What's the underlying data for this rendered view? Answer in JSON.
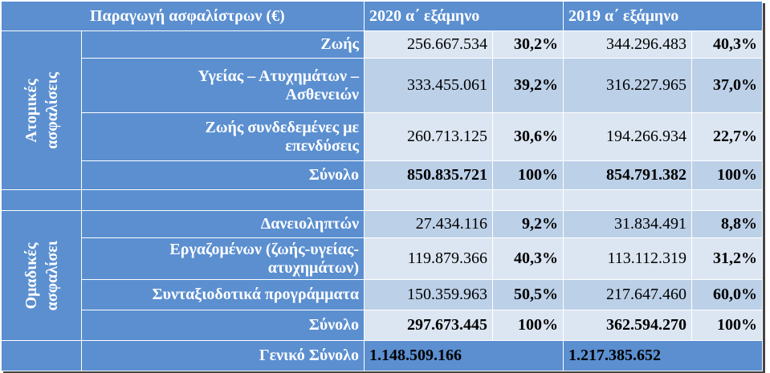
{
  "header": {
    "title": "Παραγωγή ασφαλίστρων  (€)",
    "col_2020": "2020 α΄ εξάμηνο",
    "col_2019": "2019 α΄ εξάμηνο"
  },
  "groups": [
    {
      "label": [
        "Ατομικές",
        "ασφαλίσεις"
      ],
      "rows": [
        {
          "label": [
            "Ζωής"
          ],
          "v2020": "256.667.534",
          "p2020": "30,2%",
          "v2019": "344.296.483",
          "p2019": "40,3%"
        },
        {
          "label": [
            "Υγείας – Ατυχημάτων –",
            "Ασθενειών"
          ],
          "v2020": "333.455.061",
          "p2020": "39,2%",
          "v2019": "316.227.965",
          "p2019": "37,0%"
        },
        {
          "label": [
            "Ζωής συνδεδεμένες με",
            "επενδύσεις"
          ],
          "v2020": "260.713.125",
          "p2020": "30,6%",
          "v2019": "194.266.934",
          "p2019": "22,7%"
        },
        {
          "label": [
            "Σύνολο"
          ],
          "v2020": "850.835.721",
          "p2020": "100%",
          "v2019": "854.791.382",
          "p2019": "100%",
          "bold": true
        }
      ]
    },
    {
      "label": [
        "Ομαδικές",
        "ασφαλίσει"
      ],
      "rows": [
        {
          "label": [
            "Δανειοληπτών"
          ],
          "v2020": "27.434.116",
          "p2020": "9,2%",
          "v2019": "31.834.491",
          "p2019": "8,8%"
        },
        {
          "label": [
            "Εργαζομένων (ζωής-υγείας-",
            "ατυχημάτων)"
          ],
          "v2020": "119.879.366",
          "p2020": "40,3%",
          "v2019": "113.112.319",
          "p2019": "31,2%"
        },
        {
          "label": [
            "Συνταξιοδοτικά προγράμματα"
          ],
          "v2020": "150.359.963",
          "p2020": "50,5%",
          "v2019": "217.647.460",
          "p2019": "60,0%"
        },
        {
          "label": [
            "Σύνολο"
          ],
          "v2020": "297.673.445",
          "p2020": "100%",
          "v2019": "362.594.270",
          "p2019": "100%",
          "bold": true
        }
      ]
    }
  ],
  "grand_total": {
    "label": "Γενικό Σύνολο",
    "v2020": "1.148.509.166",
    "v2019": "1.217.385.652"
  }
}
